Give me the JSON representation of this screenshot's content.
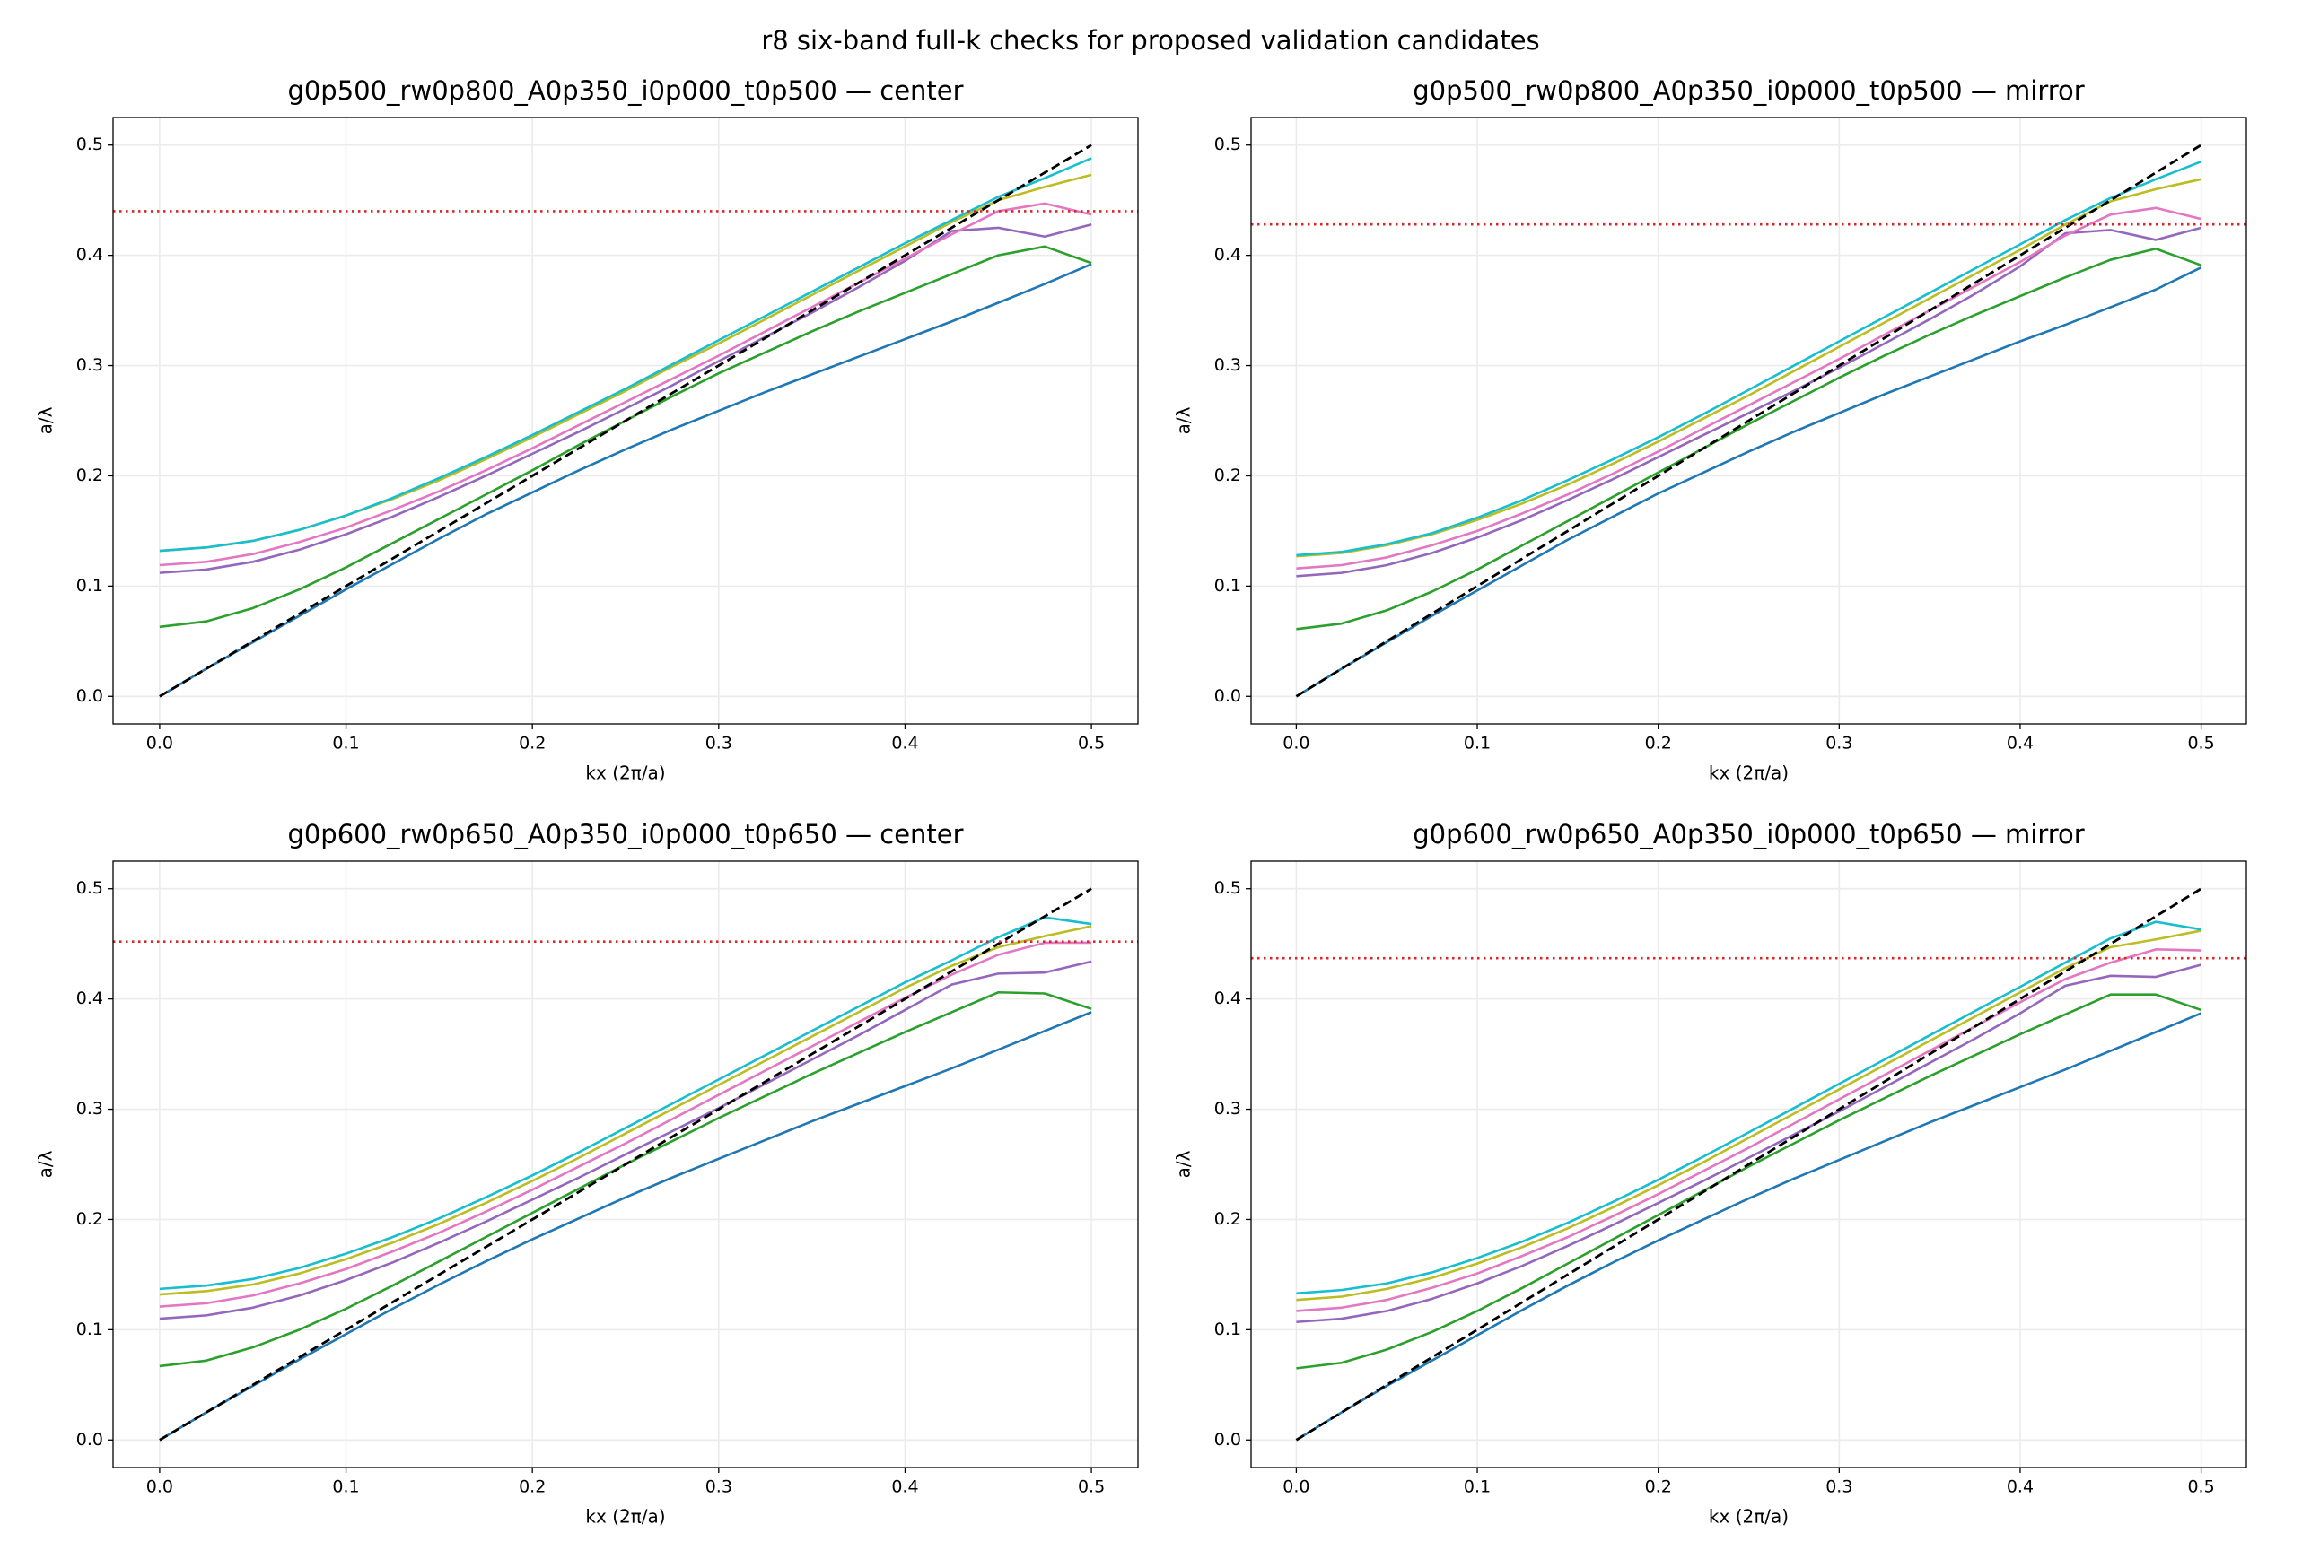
{
  "title": "r8 six-band full-k checks for proposed validation candidates",
  "chart_data": [
    {
      "type": "line",
      "title": "g0p500_rw0p800_A0p350_i0p000_t0p500 — center",
      "xlabel": "kx (2π/a)",
      "ylabel": "a/λ",
      "x": [
        0,
        0.025,
        0.05,
        0.075,
        0.1,
        0.125,
        0.15,
        0.175,
        0.2,
        0.225,
        0.25,
        0.275,
        0.3,
        0.325,
        0.35,
        0.375,
        0.4,
        0.425,
        0.45,
        0.475,
        0.5
      ],
      "series": [
        {
          "color": "#1f77b4",
          "values": [
            0,
            0.025,
            0.049,
            0.073,
            0.097,
            0.12,
            0.143,
            0.165,
            0.185,
            0.205,
            0.224,
            0.242,
            0.259,
            0.276,
            0.292,
            0.308,
            0.324,
            0.34,
            0.357,
            0.374,
            0.392
          ]
        },
        {
          "color": "#2ca02c",
          "values": [
            0.063,
            0.068,
            0.08,
            0.097,
            0.117,
            0.139,
            0.161,
            0.183,
            0.205,
            0.228,
            0.25,
            0.272,
            0.293,
            0.312,
            0.331,
            0.349,
            0.366,
            0.383,
            0.4,
            0.408,
            0.393
          ]
        },
        {
          "color": "#9467bd",
          "values": [
            0.112,
            0.115,
            0.122,
            0.133,
            0.147,
            0.163,
            0.181,
            0.2,
            0.22,
            0.24,
            0.261,
            0.282,
            0.304,
            0.326,
            0.348,
            0.371,
            0.395,
            0.422,
            0.425,
            0.417,
            0.428
          ]
        },
        {
          "color": "#e377c2",
          "values": [
            0.119,
            0.122,
            0.129,
            0.14,
            0.153,
            0.169,
            0.186,
            0.205,
            0.225,
            0.246,
            0.267,
            0.288,
            0.309,
            0.331,
            0.353,
            0.375,
            0.397,
            0.419,
            0.44,
            0.447,
            0.437
          ]
        },
        {
          "color": "#bcbd22",
          "values": [
            0.132,
            0.135,
            0.141,
            0.151,
            0.164,
            0.179,
            0.196,
            0.215,
            0.235,
            0.256,
            0.277,
            0.299,
            0.32,
            0.342,
            0.364,
            0.386,
            0.408,
            0.43,
            0.45,
            0.462,
            0.473
          ]
        },
        {
          "color": "#17becf",
          "values": [
            0.132,
            0.135,
            0.141,
            0.151,
            0.164,
            0.18,
            0.198,
            0.217,
            0.237,
            0.258,
            0.279,
            0.301,
            0.323,
            0.345,
            0.367,
            0.389,
            0.411,
            0.432,
            0.453,
            0.47,
            0.488
          ]
        }
      ],
      "light_line": {
        "x": [
          0,
          0.5
        ],
        "values": [
          0,
          0.5
        ],
        "color": "#000000"
      },
      "reference_line": {
        "value": 0.44,
        "color": "#d62728"
      },
      "xlim": [
        -0.025,
        0.525
      ],
      "ylim": [
        -0.025,
        0.525
      ],
      "xticks": [
        {
          "value": 0,
          "label": "0.0"
        },
        0.1,
        0.2,
        0.3,
        0.4,
        0.5
      ],
      "yticks": [
        {
          "value": 0,
          "label": "0.0"
        },
        0.1,
        0.2,
        0.3,
        0.4,
        0.5
      ],
      "grid": true
    },
    {
      "type": "line",
      "title": "g0p500_rw0p800_A0p350_i0p000_t0p500 — mirror",
      "xlabel": "kx (2π/a)",
      "ylabel": "a/λ",
      "x": [
        0,
        0.025,
        0.05,
        0.075,
        0.1,
        0.125,
        0.15,
        0.175,
        0.2,
        0.225,
        0.25,
        0.275,
        0.3,
        0.325,
        0.35,
        0.375,
        0.4,
        0.425,
        0.45,
        0.475,
        0.5
      ],
      "series": [
        {
          "color": "#1f77b4",
          "values": [
            0,
            0.025,
            0.049,
            0.073,
            0.096,
            0.119,
            0.142,
            0.163,
            0.184,
            0.203,
            0.222,
            0.24,
            0.257,
            0.274,
            0.29,
            0.306,
            0.322,
            0.337,
            0.353,
            0.369,
            0.389
          ]
        },
        {
          "color": "#2ca02c",
          "values": [
            0.061,
            0.066,
            0.078,
            0.095,
            0.115,
            0.137,
            0.159,
            0.181,
            0.203,
            0.225,
            0.247,
            0.268,
            0.289,
            0.309,
            0.328,
            0.346,
            0.363,
            0.38,
            0.396,
            0.406,
            0.391
          ]
        },
        {
          "color": "#9467bd",
          "values": [
            0.109,
            0.112,
            0.119,
            0.13,
            0.144,
            0.16,
            0.178,
            0.197,
            0.217,
            0.237,
            0.257,
            0.277,
            0.298,
            0.32,
            0.342,
            0.365,
            0.39,
            0.42,
            0.423,
            0.414,
            0.425
          ]
        },
        {
          "color": "#e377c2",
          "values": [
            0.116,
            0.119,
            0.126,
            0.137,
            0.15,
            0.166,
            0.183,
            0.202,
            0.222,
            0.243,
            0.264,
            0.285,
            0.306,
            0.328,
            0.35,
            0.372,
            0.394,
            0.418,
            0.437,
            0.443,
            0.433
          ]
        },
        {
          "color": "#bcbd22",
          "values": [
            0.127,
            0.13,
            0.137,
            0.147,
            0.16,
            0.175,
            0.192,
            0.211,
            0.231,
            0.252,
            0.273,
            0.295,
            0.317,
            0.339,
            0.361,
            0.383,
            0.405,
            0.428,
            0.449,
            0.46,
            0.469
          ]
        },
        {
          "color": "#17becf",
          "values": [
            0.128,
            0.131,
            0.138,
            0.148,
            0.162,
            0.178,
            0.196,
            0.215,
            0.235,
            0.256,
            0.278,
            0.3,
            0.322,
            0.344,
            0.366,
            0.388,
            0.41,
            0.432,
            0.452,
            0.469,
            0.485
          ]
        }
      ],
      "light_line": {
        "x": [
          0,
          0.5
        ],
        "values": [
          0,
          0.5
        ],
        "color": "#000000"
      },
      "reference_line": {
        "value": 0.428,
        "color": "#d62728"
      },
      "xlim": [
        -0.025,
        0.525
      ],
      "ylim": [
        -0.025,
        0.525
      ],
      "xticks": [
        {
          "value": 0,
          "label": "0.0"
        },
        0.1,
        0.2,
        0.3,
        0.4,
        0.5
      ],
      "yticks": [
        {
          "value": 0,
          "label": "0.0"
        },
        0.1,
        0.2,
        0.3,
        0.4,
        0.5
      ],
      "grid": true
    },
    {
      "type": "line",
      "title": "g0p600_rw0p650_A0p350_i0p000_t0p650 — center",
      "xlabel": "kx (2π/a)",
      "ylabel": "a/λ",
      "x": [
        0,
        0.025,
        0.05,
        0.075,
        0.1,
        0.125,
        0.15,
        0.175,
        0.2,
        0.225,
        0.25,
        0.275,
        0.3,
        0.325,
        0.35,
        0.375,
        0.4,
        0.425,
        0.45,
        0.475,
        0.5
      ],
      "series": [
        {
          "color": "#1f77b4",
          "values": [
            0,
            0.025,
            0.049,
            0.073,
            0.096,
            0.119,
            0.141,
            0.162,
            0.182,
            0.201,
            0.22,
            0.238,
            0.255,
            0.272,
            0.289,
            0.305,
            0.321,
            0.337,
            0.354,
            0.371,
            0.388
          ]
        },
        {
          "color": "#2ca02c",
          "values": [
            0.067,
            0.072,
            0.084,
            0.1,
            0.119,
            0.14,
            0.162,
            0.184,
            0.206,
            0.228,
            0.25,
            0.271,
            0.292,
            0.312,
            0.332,
            0.351,
            0.37,
            0.388,
            0.406,
            0.405,
            0.391
          ]
        },
        {
          "color": "#9467bd",
          "values": [
            0.11,
            0.113,
            0.12,
            0.131,
            0.145,
            0.161,
            0.179,
            0.198,
            0.218,
            0.238,
            0.259,
            0.28,
            0.301,
            0.323,
            0.345,
            0.367,
            0.39,
            0.413,
            0.423,
            0.424,
            0.434
          ]
        },
        {
          "color": "#e377c2",
          "values": [
            0.121,
            0.124,
            0.131,
            0.142,
            0.155,
            0.171,
            0.188,
            0.207,
            0.227,
            0.248,
            0.269,
            0.291,
            0.313,
            0.335,
            0.357,
            0.379,
            0.401,
            0.422,
            0.44,
            0.451,
            0.451
          ]
        },
        {
          "color": "#bcbd22",
          "values": [
            0.132,
            0.135,
            0.141,
            0.151,
            0.164,
            0.179,
            0.196,
            0.215,
            0.235,
            0.256,
            0.278,
            0.3,
            0.322,
            0.344,
            0.366,
            0.388,
            0.41,
            0.43,
            0.447,
            0.457,
            0.466
          ]
        },
        {
          "color": "#17becf",
          "values": [
            0.137,
            0.14,
            0.146,
            0.156,
            0.169,
            0.184,
            0.201,
            0.22,
            0.24,
            0.261,
            0.283,
            0.305,
            0.327,
            0.349,
            0.371,
            0.393,
            0.415,
            0.435,
            0.456,
            0.474,
            0.468
          ]
        }
      ],
      "light_line": {
        "x": [
          0,
          0.5
        ],
        "values": [
          0,
          0.5
        ],
        "color": "#000000"
      },
      "reference_line": {
        "value": 0.452,
        "color": "#d62728"
      },
      "xlim": [
        -0.025,
        0.525
      ],
      "ylim": [
        -0.025,
        0.525
      ],
      "xticks": [
        {
          "value": 0,
          "label": "0.0"
        },
        0.1,
        0.2,
        0.3,
        0.4,
        0.5
      ],
      "yticks": [
        {
          "value": 0,
          "label": "0.0"
        },
        0.1,
        0.2,
        0.3,
        0.4,
        0.5
      ],
      "grid": true
    },
    {
      "type": "line",
      "title": "g0p600_rw0p650_A0p350_i0p000_t0p650 — mirror",
      "xlabel": "kx (2π/a)",
      "ylabel": "a/λ",
      "x": [
        0,
        0.025,
        0.05,
        0.075,
        0.1,
        0.125,
        0.15,
        0.175,
        0.2,
        0.225,
        0.25,
        0.275,
        0.3,
        0.325,
        0.35,
        0.375,
        0.4,
        0.425,
        0.45,
        0.475,
        0.5
      ],
      "series": [
        {
          "color": "#1f77b4",
          "values": [
            0,
            0.025,
            0.049,
            0.072,
            0.095,
            0.118,
            0.14,
            0.161,
            0.181,
            0.2,
            0.219,
            0.237,
            0.254,
            0.271,
            0.288,
            0.304,
            0.32,
            0.336,
            0.353,
            0.37,
            0.387
          ]
        },
        {
          "color": "#2ca02c",
          "values": [
            0.065,
            0.07,
            0.082,
            0.098,
            0.117,
            0.138,
            0.16,
            0.182,
            0.204,
            0.226,
            0.248,
            0.269,
            0.29,
            0.31,
            0.33,
            0.349,
            0.368,
            0.386,
            0.404,
            0.404,
            0.39
          ]
        },
        {
          "color": "#9467bd",
          "values": [
            0.107,
            0.11,
            0.117,
            0.128,
            0.142,
            0.158,
            0.176,
            0.195,
            0.215,
            0.235,
            0.256,
            0.277,
            0.298,
            0.32,
            0.342,
            0.364,
            0.387,
            0.412,
            0.421,
            0.42,
            0.431
          ]
        },
        {
          "color": "#e377c2",
          "values": [
            0.117,
            0.12,
            0.127,
            0.138,
            0.151,
            0.167,
            0.184,
            0.203,
            0.223,
            0.244,
            0.265,
            0.287,
            0.309,
            0.331,
            0.353,
            0.375,
            0.397,
            0.418,
            0.433,
            0.445,
            0.444
          ]
        },
        {
          "color": "#bcbd22",
          "values": [
            0.127,
            0.13,
            0.137,
            0.147,
            0.16,
            0.175,
            0.192,
            0.211,
            0.231,
            0.252,
            0.274,
            0.296,
            0.318,
            0.34,
            0.362,
            0.384,
            0.406,
            0.428,
            0.447,
            0.454,
            0.462
          ]
        },
        {
          "color": "#17becf",
          "values": [
            0.133,
            0.136,
            0.142,
            0.152,
            0.165,
            0.18,
            0.197,
            0.216,
            0.236,
            0.257,
            0.279,
            0.301,
            0.323,
            0.345,
            0.367,
            0.389,
            0.411,
            0.433,
            0.455,
            0.47,
            0.463
          ]
        }
      ],
      "light_line": {
        "x": [
          0,
          0.5
        ],
        "values": [
          0,
          0.5
        ],
        "color": "#000000"
      },
      "reference_line": {
        "value": 0.437,
        "color": "#d62728"
      },
      "xlim": [
        -0.025,
        0.525
      ],
      "ylim": [
        -0.025,
        0.525
      ],
      "xticks": [
        {
          "value": 0,
          "label": "0.0"
        },
        0.1,
        0.2,
        0.3,
        0.4,
        0.5
      ],
      "yticks": [
        {
          "value": 0,
          "label": "0.0"
        },
        0.1,
        0.2,
        0.3,
        0.4,
        0.5
      ],
      "grid": true
    }
  ]
}
